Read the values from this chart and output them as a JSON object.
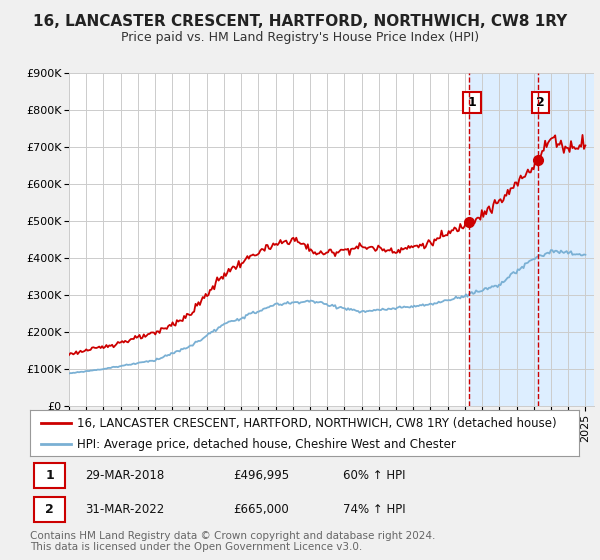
{
  "title": "16, LANCASTER CRESCENT, HARTFORD, NORTHWICH, CW8 1RY",
  "subtitle": "Price paid vs. HM Land Registry's House Price Index (HPI)",
  "ylim": [
    0,
    900000
  ],
  "yticks": [
    0,
    100000,
    200000,
    300000,
    400000,
    500000,
    600000,
    700000,
    800000,
    900000
  ],
  "ytick_labels": [
    "£0",
    "£100K",
    "£200K",
    "£300K",
    "£400K",
    "£500K",
    "£600K",
    "£700K",
    "£800K",
    "£900K"
  ],
  "xlim_start": 1995.0,
  "xlim_end": 2025.5,
  "bg_color": "#f0f0f0",
  "plot_bg_color": "#ffffff",
  "shade_color": "#ddeeff",
  "grid_color": "#cccccc",
  "red_color": "#cc0000",
  "blue_color": "#7ab0d4",
  "marker1_x": 2018.25,
  "marker1_y": 496995,
  "marker2_x": 2022.25,
  "marker2_y": 665000,
  "annotation1_label": "1",
  "annotation2_label": "2",
  "legend_line1": "16, LANCASTER CRESCENT, HARTFORD, NORTHWICH, CW8 1RY (detached house)",
  "legend_line2": "HPI: Average price, detached house, Cheshire West and Chester",
  "table_row1": [
    "1",
    "29-MAR-2018",
    "£496,995",
    "60% ↑ HPI"
  ],
  "table_row2": [
    "2",
    "31-MAR-2022",
    "£665,000",
    "74% ↑ HPI"
  ],
  "footer": "Contains HM Land Registry data © Crown copyright and database right 2024.\nThis data is licensed under the Open Government Licence v3.0.",
  "title_fontsize": 11,
  "subtitle_fontsize": 9,
  "tick_fontsize": 8,
  "legend_fontsize": 8.5,
  "footer_fontsize": 7.5
}
